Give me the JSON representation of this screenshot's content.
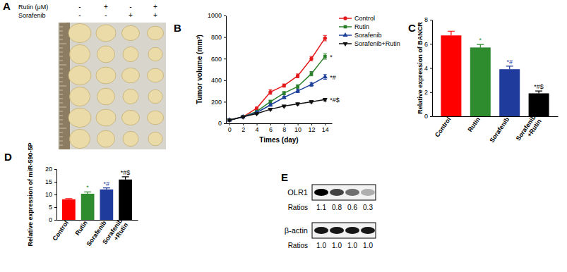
{
  "panel_a": {
    "panel_label": "A",
    "rows": [
      {
        "label": "Rutin (μM)",
        "signs": [
          "-",
          "+",
          "-",
          "+"
        ]
      },
      {
        "label": "Sorafenib",
        "signs": [
          "-",
          "-",
          "+",
          "+"
        ]
      }
    ]
  },
  "chart_data": [
    {
      "panel_label": "B",
      "type": "line",
      "x_label": "Times (day)",
      "y_label": "Tumor volume (mm³)",
      "x": [
        0,
        2,
        4,
        6,
        8,
        10,
        12,
        14
      ],
      "xlim": [
        -0.5,
        15
      ],
      "xticks": [
        0,
        2,
        4,
        6,
        8,
        10,
        12,
        14
      ],
      "ylim": [
        0,
        1000
      ],
      "yticks": [
        0,
        200,
        400,
        600,
        800,
        1000
      ],
      "legend": "right",
      "series": [
        {
          "name": "Control",
          "color": "#e31a1c",
          "marker": "circle",
          "values": [
            30,
            60,
            140,
            290,
            350,
            440,
            600,
            790
          ],
          "errors": [
            5,
            6,
            10,
            22,
            15,
            18,
            20,
            25
          ]
        },
        {
          "name": "Rutin",
          "color": "#2a7f2a",
          "marker": "square",
          "values": [
            30,
            60,
            110,
            200,
            280,
            340,
            460,
            620
          ],
          "errors": [
            5,
            6,
            8,
            15,
            15,
            18,
            20,
            25
          ],
          "annotation": "*"
        },
        {
          "name": "Sorafenib",
          "color": "#1c3f99",
          "marker": "triangle",
          "values": [
            30,
            60,
            100,
            170,
            240,
            300,
            360,
            430
          ],
          "errors": [
            5,
            6,
            8,
            12,
            12,
            15,
            18,
            22
          ],
          "annotation": "*#"
        },
        {
          "name": "Sorafenib+Rutin",
          "color": "#111111",
          "marker": "triangle-down",
          "values": [
            30,
            60,
            90,
            130,
            160,
            180,
            200,
            220
          ],
          "errors": [
            5,
            5,
            6,
            8,
            8,
            10,
            10,
            12
          ],
          "annotation": "*#$"
        }
      ]
    },
    {
      "panel_label": "C",
      "type": "bar",
      "y_label": "Relative expression of BANCR",
      "categories": [
        "Control",
        "Rutin",
        "Sorafenib",
        "Sorafenib +Rutin"
      ],
      "values": [
        6.7,
        5.7,
        3.9,
        1.9
      ],
      "errors": [
        0.35,
        0.25,
        0.25,
        0.2
      ],
      "colors": [
        "#ff0000",
        "#2e8b2e",
        "#1f3b9b",
        "#000000"
      ],
      "annotations": [
        null,
        "*",
        "*#",
        "*#$"
      ],
      "ylim": [
        0,
        8
      ],
      "yticks": [
        0,
        2,
        4,
        6,
        8
      ]
    },
    {
      "panel_label": "D",
      "type": "bar",
      "y_label": "Relative expression of miR-590-5P",
      "categories": [
        "Control",
        "Rutin",
        "Sorafenib",
        "Sorafenib +Rutin"
      ],
      "values": [
        8.1,
        10.3,
        12.0,
        15.9
      ],
      "errors": [
        0.3,
        0.7,
        0.6,
        1.1
      ],
      "colors": [
        "#ff0000",
        "#2e8b2e",
        "#1f3b9b",
        "#000000"
      ],
      "annotations": [
        null,
        "*",
        "*#",
        "*#$"
      ],
      "ylim": [
        0,
        20
      ],
      "yticks": [
        0,
        5,
        10,
        15,
        20
      ]
    },
    {
      "panel_label": "E",
      "type": "blot",
      "ratio_label": "Ratios",
      "rows": [
        {
          "name": "OLR1",
          "values": [
            1.1,
            0.8,
            0.6,
            0.3
          ]
        },
        {
          "name": "β-actin",
          "values": [
            1,
            1,
            1,
            1
          ],
          "value_labels": [
            "1.0",
            "1.0",
            "1.0",
            "1.0"
          ]
        }
      ]
    }
  ]
}
